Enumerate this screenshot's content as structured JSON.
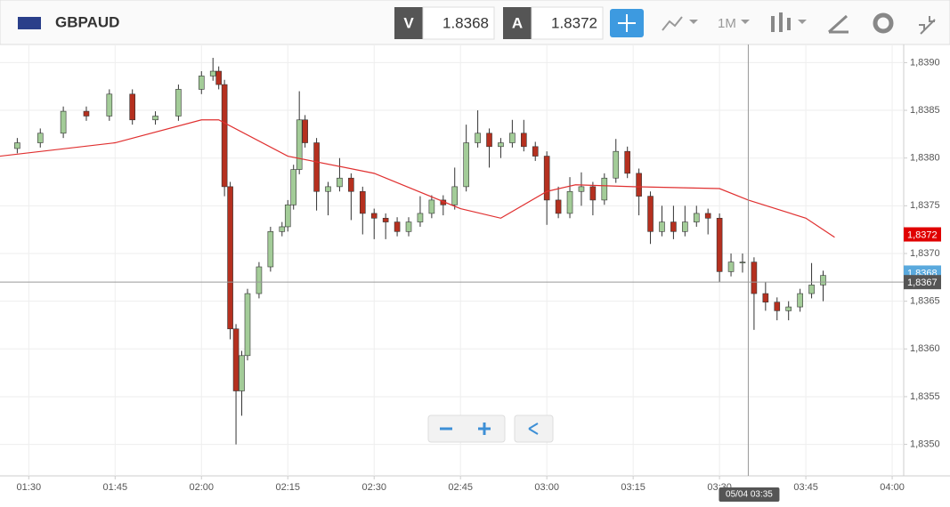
{
  "toolbar": {
    "symbol": "GBPAUD",
    "bid_tag": "V",
    "bid": "1.8368",
    "ask_tag": "A",
    "ask": "1.8372",
    "interval": "1M"
  },
  "chart_data": {
    "type": "candlestick",
    "x": [
      "01:28",
      "01:32",
      "01:36",
      "01:40",
      "01:44",
      "01:48",
      "01:52",
      "01:56",
      "02:00",
      "02:02",
      "02:03",
      "02:04",
      "02:05",
      "02:06",
      "02:07",
      "02:08",
      "02:10",
      "02:12",
      "02:14",
      "02:15",
      "02:16",
      "02:17",
      "02:18",
      "02:20",
      "02:22",
      "02:24",
      "02:26",
      "02:28",
      "02:30",
      "02:32",
      "02:34",
      "02:36",
      "02:38",
      "02:40",
      "02:42",
      "02:44",
      "02:46",
      "02:48",
      "02:50",
      "02:52",
      "02:54",
      "02:56",
      "02:58",
      "03:00",
      "03:02",
      "03:04",
      "03:06",
      "03:08",
      "03:10",
      "03:12",
      "03:14",
      "03:16",
      "03:18",
      "03:20",
      "03:22",
      "03:24",
      "03:26",
      "03:28",
      "03:30",
      "03:32",
      "03:34",
      "03:36",
      "03:38",
      "03:40",
      "03:42",
      "03:44",
      "03:46",
      "03:48"
    ],
    "open": [
      1.8381,
      1.83816,
      1.83826,
      1.83849,
      1.83844,
      1.83867,
      1.8384,
      1.83844,
      1.83872,
      1.83886,
      1.83891,
      1.83877,
      1.8377,
      1.83621,
      1.83556,
      1.83593,
      1.83658,
      1.83686,
      1.83723,
      1.83728,
      1.83751,
      1.83788,
      1.8384,
      1.83816,
      1.83765,
      1.8377,
      1.83779,
      1.83765,
      1.83742,
      1.83737,
      1.83733,
      1.83723,
      1.83733,
      1.83742,
      1.83756,
      1.83751,
      1.8377,
      1.83816,
      1.83826,
      1.83812,
      1.83816,
      1.83826,
      1.83812,
      1.83802,
      1.83756,
      1.83742,
      1.83765,
      1.8377,
      1.83756,
      1.83779,
      1.83807,
      1.83784,
      1.8376,
      1.83723,
      1.83733,
      1.83723,
      1.83733,
      1.83742,
      1.83737,
      1.83681,
      1.83691,
      1.83691,
      1.83658,
      1.83649,
      1.8364,
      1.83644,
      1.83658,
      1.83667
    ],
    "high": [
      1.83821,
      1.83831,
      1.83854,
      1.83854,
      1.83872,
      1.83872,
      1.83849,
      1.83877,
      1.83891,
      1.83905,
      1.83896,
      1.83882,
      1.83775,
      1.83626,
      1.83598,
      1.83663,
      1.83691,
      1.83728,
      1.83733,
      1.83756,
      1.83793,
      1.8387,
      1.83845,
      1.83821,
      1.83775,
      1.838,
      1.83784,
      1.8377,
      1.83747,
      1.83742,
      1.83738,
      1.83738,
      1.8376,
      1.83761,
      1.83761,
      1.8379,
      1.83835,
      1.8385,
      1.83831,
      1.83821,
      1.8384,
      1.8384,
      1.83817,
      1.83807,
      1.8377,
      1.8378,
      1.83785,
      1.83775,
      1.83784,
      1.8382,
      1.83812,
      1.83789,
      1.83765,
      1.8375,
      1.8375,
      1.8375,
      1.8375,
      1.83747,
      1.83742,
      1.837,
      1.837,
      1.83696,
      1.8367,
      1.83654,
      1.8365,
      1.83663,
      1.8369,
      1.83682
    ],
    "low": [
      1.83805,
      1.83811,
      1.83821,
      1.83839,
      1.83839,
      1.83835,
      1.83835,
      1.83839,
      1.83867,
      1.83881,
      1.83872,
      1.8376,
      1.8361,
      1.835,
      1.8353,
      1.83588,
      1.83653,
      1.83681,
      1.83718,
      1.83723,
      1.83746,
      1.83783,
      1.83811,
      1.83745,
      1.8374,
      1.83765,
      1.83735,
      1.8372,
      1.83715,
      1.83715,
      1.83718,
      1.83718,
      1.83728,
      1.83737,
      1.8374,
      1.83746,
      1.83765,
      1.83811,
      1.8379,
      1.838,
      1.83811,
      1.83807,
      1.83797,
      1.8373,
      1.83737,
      1.83737,
      1.8375,
      1.8374,
      1.83751,
      1.83774,
      1.83779,
      1.8374,
      1.8371,
      1.83718,
      1.83715,
      1.83718,
      1.83728,
      1.8372,
      1.8367,
      1.83676,
      1.8368,
      1.8362,
      1.8364,
      1.8363,
      1.8363,
      1.83639,
      1.83653,
      1.8365
    ],
    "close": [
      1.83816,
      1.83826,
      1.83849,
      1.83844,
      1.83867,
      1.8384,
      1.83844,
      1.83872,
      1.83886,
      1.83891,
      1.83877,
      1.8377,
      1.83621,
      1.83556,
      1.83593,
      1.83658,
      1.83686,
      1.83723,
      1.83728,
      1.83751,
      1.83788,
      1.8384,
      1.83816,
      1.83765,
      1.8377,
      1.83779,
      1.83765,
      1.83742,
      1.83737,
      1.83733,
      1.83723,
      1.83733,
      1.83742,
      1.83756,
      1.83751,
      1.8377,
      1.83816,
      1.83826,
      1.83812,
      1.83816,
      1.83826,
      1.83812,
      1.83802,
      1.83756,
      1.83742,
      1.83765,
      1.8377,
      1.83756,
      1.83779,
      1.83807,
      1.83784,
      1.8376,
      1.83723,
      1.83733,
      1.83723,
      1.83733,
      1.83742,
      1.83737,
      1.83681,
      1.83691,
      1.83691,
      1.83658,
      1.83649,
      1.8364,
      1.83644,
      1.83658,
      1.83667,
      1.83677
    ],
    "up_color": "#a3cc98",
    "down_color": "#b5301f",
    "ma": {
      "color": "#e03030",
      "x": [
        "01:25",
        "01:45",
        "02:00",
        "02:03",
        "02:15",
        "02:30",
        "02:45",
        "02:52",
        "03:00",
        "03:05",
        "03:15",
        "03:30",
        "03:35",
        "03:45",
        "03:50"
      ],
      "values": [
        1.83802,
        1.83816,
        1.8384,
        1.8384,
        1.83802,
        1.83784,
        1.83747,
        1.83737,
        1.83765,
        1.83772,
        1.8377,
        1.83768,
        1.83756,
        1.83737,
        1.83717
      ]
    },
    "xlim": [
      "01:25",
      "04:02"
    ],
    "ylim": [
      1.83467,
      1.83919
    ],
    "xticks": [
      "01:30",
      "01:45",
      "02:00",
      "02:15",
      "02:30",
      "02:45",
      "03:00",
      "03:15",
      "03:30",
      "03:45",
      "04:00"
    ],
    "yticks": [
      {
        "value": 1.835,
        "label": "1,8350"
      },
      {
        "value": 1.8355,
        "label": "1,8355"
      },
      {
        "value": 1.836,
        "label": "1,8360"
      },
      {
        "value": 1.8365,
        "label": "1,8365"
      },
      {
        "value": 1.837,
        "label": "1,8370"
      },
      {
        "value": 1.8375,
        "label": "1,8375"
      },
      {
        "value": 1.838,
        "label": "1,8380"
      },
      {
        "value": 1.8385,
        "label": "1,8385"
      },
      {
        "value": 1.839,
        "label": "1,8390"
      }
    ],
    "grid": true,
    "ask_badge": {
      "value": 1.8372,
      "label": "1,8372",
      "color": "#e00000"
    },
    "bid_badge": {
      "value": 1.8368,
      "label": "1,8368",
      "color": "#5aa9dd"
    },
    "crosshair": {
      "value": 1.8367,
      "label": "1,8367",
      "time": "03:35",
      "time_label": "05/04 03:35"
    }
  }
}
